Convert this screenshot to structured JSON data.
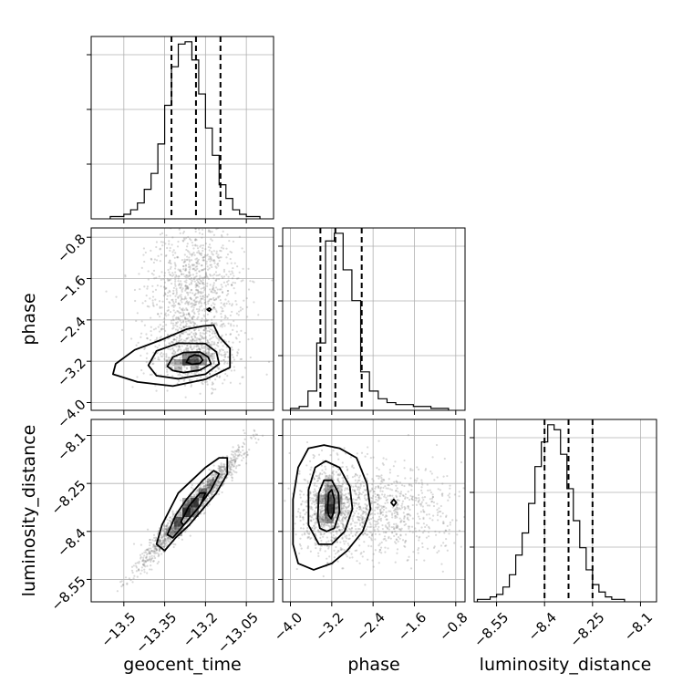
{
  "figure": {
    "background": "#ffffff",
    "grid": true,
    "grid_color": "#b0b0b0",
    "scatter_color": "#808080"
  },
  "chart_data": [
    {
      "type": "histogram",
      "name": "geocent_time",
      "xlim": [
        -13.62,
        -12.95
      ],
      "quantiles": [
        -13.325,
        -13.235,
        -13.145
      ],
      "bins": {
        "x0": -13.55,
        "width": 0.025,
        "counts": [
          1,
          1,
          2,
          4,
          7,
          13,
          20,
          33,
          50,
          67,
          77,
          78,
          70,
          55,
          40,
          28,
          15,
          9,
          4,
          2,
          1,
          1
        ]
      }
    },
    {
      "type": "scatter",
      "name": "geocent_time vs phase",
      "xlim": [
        -13.62,
        -12.95
      ],
      "ylim": [
        -4.15,
        -0.62
      ],
      "xticks": [
        -13.5,
        -13.35,
        -13.2,
        -13.05
      ],
      "yticks": [
        -4.0,
        -3.2,
        -2.4,
        -1.6,
        -0.8
      ],
      "ylabel": "phase",
      "density": {
        "center": [
          -13.245,
          -3.15
        ],
        "spread": [
          0.08,
          0.28
        ]
      },
      "contours": [
        {
          "level": "outer",
          "points": [
            [
              -13.53,
              -3.25
            ],
            [
              -13.46,
              -2.98
            ],
            [
              -13.36,
              -2.78
            ],
            [
              -13.27,
              -2.58
            ],
            [
              -13.21,
              -2.52
            ],
            [
              -13.17,
              -2.5
            ],
            [
              -13.15,
              -2.72
            ],
            [
              -13.11,
              -2.95
            ],
            [
              -13.11,
              -3.32
            ],
            [
              -13.2,
              -3.55
            ],
            [
              -13.32,
              -3.68
            ],
            [
              -13.45,
              -3.6
            ],
            [
              -13.54,
              -3.45
            ]
          ]
        },
        {
          "level": "middle",
          "points": [
            [
              -13.41,
              -3.28
            ],
            [
              -13.38,
              -3.0
            ],
            [
              -13.3,
              -2.85
            ],
            [
              -13.2,
              -2.86
            ],
            [
              -13.16,
              -3.02
            ],
            [
              -13.15,
              -3.25
            ],
            [
              -13.2,
              -3.45
            ],
            [
              -13.3,
              -3.54
            ],
            [
              -13.38,
              -3.48
            ]
          ]
        },
        {
          "level": "inner",
          "points": [
            [
              -13.34,
              -3.3
            ],
            [
              -13.32,
              -3.12
            ],
            [
              -13.28,
              -3.03
            ],
            [
              -13.22,
              -3.02
            ],
            [
              -13.19,
              -3.12
            ],
            [
              -13.18,
              -3.25
            ],
            [
              -13.22,
              -3.37
            ],
            [
              -13.28,
              -3.42
            ],
            [
              -13.32,
              -3.38
            ]
          ]
        },
        {
          "level": "core",
          "points": [
            [
              -13.27,
              -3.22
            ],
            [
              -13.26,
              -3.12
            ],
            [
              -13.24,
              -3.08
            ],
            [
              -13.22,
              -3.1
            ],
            [
              -13.21,
              -3.18
            ],
            [
              -13.22,
              -3.24
            ],
            [
              -13.25,
              -3.26
            ]
          ]
        },
        {
          "level": "island",
          "points": [
            [
              -13.194,
              -2.2
            ],
            [
              -13.186,
              -2.17
            ],
            [
              -13.18,
              -2.2
            ],
            [
              -13.186,
              -2.23
            ]
          ]
        }
      ]
    },
    {
      "type": "histogram",
      "name": "phase",
      "xlim": [
        -4.15,
        -0.62
      ],
      "quantiles": [
        -3.42,
        -3.13,
        -2.62
      ],
      "bins": {
        "x0": -4.0,
        "width": 0.17,
        "counts": [
          1,
          2,
          10,
          35,
          88,
          92,
          73,
          57,
          20,
          10,
          6,
          4,
          3,
          3,
          2,
          2,
          1,
          1
        ]
      }
    },
    {
      "type": "scatter",
      "name": "geocent_time vs luminosity_distance",
      "xlim": [
        -13.62,
        -12.95
      ],
      "ylim": [
        -8.62,
        -8.05
      ],
      "xticks": [
        -13.5,
        -13.35,
        -13.2,
        -13.05
      ],
      "yticks": [
        -8.55,
        -8.4,
        -8.25,
        -8.1
      ],
      "xlabel": "geocent_time",
      "ylabel": "luminosity_distance",
      "density": {
        "center": [
          -13.25,
          -8.325
        ],
        "correlated": true
      },
      "contours": [
        {
          "level": "outer",
          "points": [
            [
              -13.38,
              -8.44
            ],
            [
              -13.36,
              -8.38
            ],
            [
              -13.33,
              -8.33
            ],
            [
              -13.3,
              -8.28
            ],
            [
              -13.25,
              -8.24
            ],
            [
              -13.2,
              -8.2
            ],
            [
              -13.15,
              -8.17
            ],
            [
              -13.12,
              -8.17
            ],
            [
              -13.12,
              -8.22
            ],
            [
              -13.16,
              -8.28
            ],
            [
              -13.21,
              -8.33
            ],
            [
              -13.26,
              -8.38
            ],
            [
              -13.31,
              -8.42
            ],
            [
              -13.35,
              -8.46
            ]
          ]
        },
        {
          "level": "middle",
          "points": [
            [
              -13.34,
              -8.41
            ],
            [
              -13.31,
              -8.35
            ],
            [
              -13.27,
              -8.3
            ],
            [
              -13.21,
              -8.24
            ],
            [
              -13.17,
              -8.21
            ],
            [
              -13.15,
              -8.22
            ],
            [
              -13.18,
              -8.27
            ],
            [
              -13.23,
              -8.33
            ],
            [
              -13.28,
              -8.38
            ],
            [
              -13.32,
              -8.42
            ]
          ]
        },
        {
          "level": "inner",
          "points": [
            [
              -13.29,
              -8.37
            ],
            [
              -13.26,
              -8.32
            ],
            [
              -13.22,
              -8.28
            ],
            [
              -13.2,
              -8.28
            ],
            [
              -13.22,
              -8.32
            ],
            [
              -13.26,
              -8.36
            ],
            [
              -13.28,
              -8.38
            ]
          ]
        }
      ]
    },
    {
      "type": "scatter",
      "name": "phase vs luminosity_distance",
      "xlim": [
        -4.15,
        -0.62
      ],
      "ylim": [
        -8.62,
        -8.05
      ],
      "xticks": [
        -4.0,
        -3.2,
        -2.4,
        -1.6,
        -0.8
      ],
      "yticks": [
        -8.55,
        -8.4,
        -8.25,
        -8.1
      ],
      "xlabel": "phase",
      "density": {
        "center": [
          -3.2,
          -8.33
        ],
        "spread": [
          0.28,
          0.07
        ]
      },
      "contours": [
        {
          "level": "outer",
          "points": [
            [
              -3.95,
              -8.44
            ],
            [
              -3.95,
              -8.3
            ],
            [
              -3.85,
              -8.2
            ],
            [
              -3.65,
              -8.14
            ],
            [
              -3.35,
              -8.13
            ],
            [
              -3.05,
              -8.14
            ],
            [
              -2.72,
              -8.17
            ],
            [
              -2.52,
              -8.25
            ],
            [
              -2.45,
              -8.33
            ],
            [
              -2.6,
              -8.4
            ],
            [
              -2.9,
              -8.46
            ],
            [
              -3.2,
              -8.5
            ],
            [
              -3.55,
              -8.52
            ],
            [
              -3.85,
              -8.5
            ]
          ]
        },
        {
          "level": "middle",
          "points": [
            [
              -3.65,
              -8.38
            ],
            [
              -3.65,
              -8.27
            ],
            [
              -3.52,
              -8.2
            ],
            [
              -3.32,
              -8.18
            ],
            [
              -3.05,
              -8.2
            ],
            [
              -2.85,
              -8.26
            ],
            [
              -2.8,
              -8.33
            ],
            [
              -2.95,
              -8.4
            ],
            [
              -3.2,
              -8.44
            ],
            [
              -3.45,
              -8.44
            ]
          ]
        },
        {
          "level": "inner",
          "points": [
            [
              -3.47,
              -8.36
            ],
            [
              -3.45,
              -8.28
            ],
            [
              -3.35,
              -8.24
            ],
            [
              -3.2,
              -8.24
            ],
            [
              -3.07,
              -8.28
            ],
            [
              -3.05,
              -8.34
            ],
            [
              -3.15,
              -8.39
            ],
            [
              -3.3,
              -8.4
            ],
            [
              -3.43,
              -8.39
            ]
          ]
        },
        {
          "level": "core",
          "points": [
            [
              -3.28,
              -8.33
            ],
            [
              -3.26,
              -8.28
            ],
            [
              -3.2,
              -8.27
            ],
            [
              -3.15,
              -8.3
            ],
            [
              -3.16,
              -8.34
            ],
            [
              -3.21,
              -8.36
            ],
            [
              -3.26,
              -8.35
            ]
          ]
        },
        {
          "level": "island",
          "points": [
            [
              -2.05,
              -8.31
            ],
            [
              -2.0,
              -8.3
            ],
            [
              -1.95,
              -8.31
            ],
            [
              -2.0,
              -8.32
            ]
          ]
        }
      ]
    },
    {
      "type": "histogram",
      "name": "luminosity_distance",
      "xlim": [
        -8.62,
        -8.05
      ],
      "xticks": [
        -8.55,
        -8.4,
        -8.25,
        -8.1
      ],
      "xlabel": "luminosity_distance",
      "quantiles": [
        -8.4,
        -8.325,
        -8.25
      ],
      "bins": {
        "x0": -8.61,
        "width": 0.02,
        "counts": [
          1,
          1,
          2,
          3,
          6,
          11,
          19,
          28,
          40,
          55,
          65,
          72,
          70,
          60,
          46,
          33,
          22,
          13,
          7,
          4,
          2,
          1,
          1
        ]
      }
    }
  ]
}
